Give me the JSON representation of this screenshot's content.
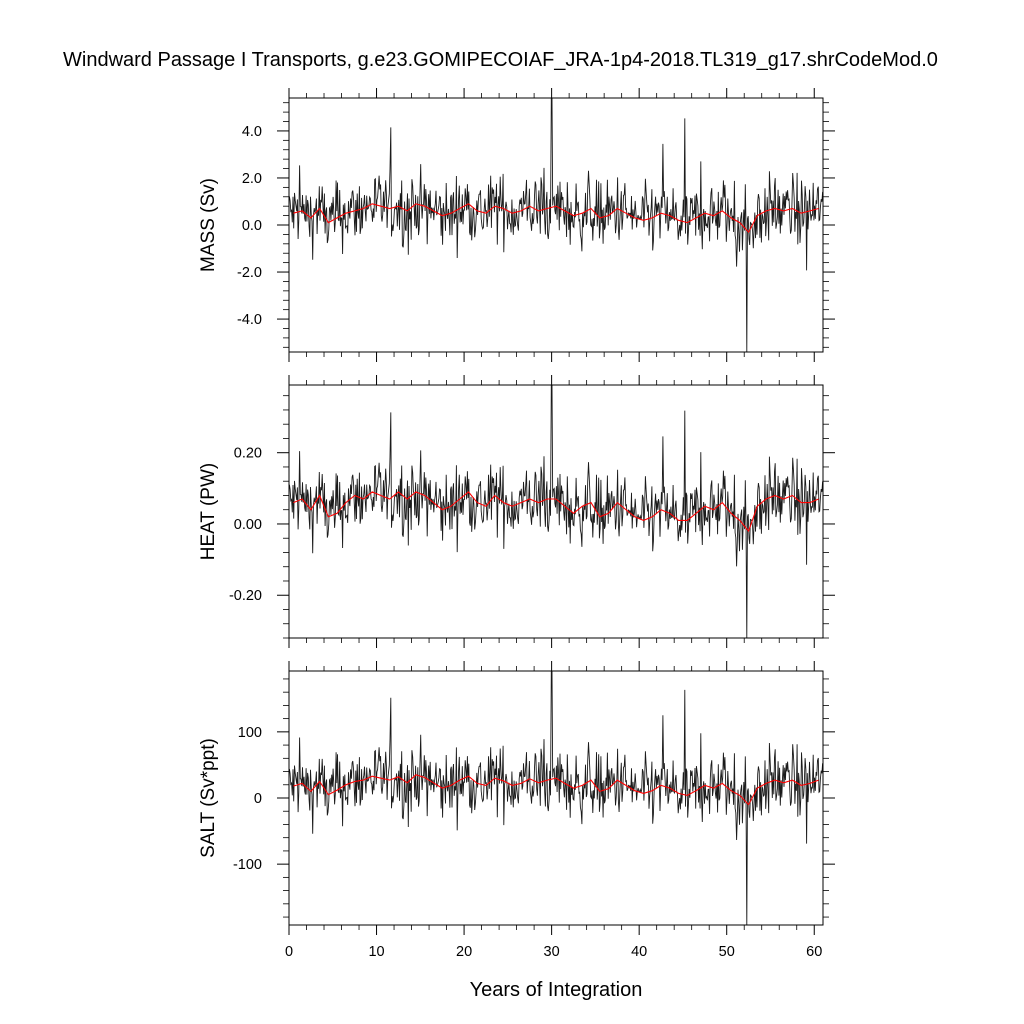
{
  "chart_data": {
    "title": "Windward Passage I Transports, g.e23.GOMIPECOIAF_JRA-1p4-2018.TL319_g17.shrCodeMod.0",
    "xlabel": "Years of Integration",
    "x_range": [
      0,
      61
    ],
    "x_ticks": [
      0,
      10,
      20,
      30,
      40,
      50,
      60
    ],
    "x_tick_labels": [
      "0",
      "10",
      "20",
      "30",
      "40",
      "50",
      "60"
    ],
    "grid": false,
    "colors": {
      "monthly": "#1a1a1a",
      "annual": "#ff0000",
      "frame": "#000000"
    },
    "panels": [
      {
        "type": "line",
        "ylabel": "MASS (Sv)",
        "ylim": [
          -5.4,
          5.4
        ],
        "y_ticks": [
          -4,
          -2,
          0,
          2,
          4
        ],
        "y_tick_labels": [
          "-4.0",
          "-2.0",
          "0.0",
          "2.0",
          "4.0"
        ],
        "minor_step": 0.4,
        "series": [
          {
            "role": "monthly",
            "mean": 0.5,
            "amplitude": 1.0,
            "max": 5.4,
            "min": -5.4,
            "max_at_year": 30.0,
            "min_at_year": 52.3
          },
          {
            "role": "annual",
            "x": [
              0.5,
              1.5,
              2.5,
              3.5,
              4.5,
              5.5,
              6.5,
              7.5,
              8.5,
              9.5,
              10.5,
              11.5,
              12.5,
              13.5,
              14.5,
              15.5,
              16.5,
              17.5,
              18.5,
              19.5,
              20.5,
              21.5,
              22.5,
              23.5,
              24.5,
              25.5,
              26.5,
              27.5,
              28.5,
              29.5,
              30.5,
              31.5,
              32.5,
              33.5,
              34.5,
              35.5,
              36.5,
              37.5,
              38.5,
              39.5,
              40.5,
              41.5,
              42.5,
              43.5,
              44.5,
              45.5,
              46.5,
              47.5,
              48.5,
              49.5,
              50.5,
              51.5,
              52.5,
              53.5,
              54.5,
              55.5,
              56.5,
              57.5,
              58.5,
              59.5,
              60.5
            ],
            "y": [
              0.5,
              0.6,
              0.3,
              0.7,
              0.1,
              0.3,
              0.5,
              0.6,
              0.7,
              0.9,
              0.8,
              0.7,
              0.8,
              0.6,
              0.9,
              0.8,
              0.6,
              0.4,
              0.5,
              0.7,
              0.9,
              0.6,
              0.5,
              0.8,
              0.7,
              0.5,
              0.6,
              0.8,
              0.6,
              0.7,
              0.8,
              0.6,
              0.4,
              0.5,
              0.7,
              0.3,
              0.4,
              0.7,
              0.5,
              0.3,
              0.2,
              0.3,
              0.5,
              0.4,
              0.2,
              0.1,
              0.3,
              0.5,
              0.4,
              0.6,
              0.3,
              0.1,
              -0.3,
              0.4,
              0.6,
              0.7,
              0.6,
              0.7,
              0.5,
              0.6,
              0.7
            ]
          }
        ]
      },
      {
        "type": "line",
        "ylabel": "HEAT (PW)",
        "ylim": [
          -0.32,
          0.39
        ],
        "y_ticks": [
          -0.2,
          0,
          0.2
        ],
        "y_tick_labels": [
          "-0.20",
          "0.00",
          "0.20"
        ],
        "minor_step": 0.04,
        "series": [
          {
            "role": "monthly",
            "mean": 0.06,
            "amplitude": 0.07,
            "max": 0.39,
            "min": -0.32,
            "max_at_year": 30.0,
            "min_at_year": 52.3
          },
          {
            "role": "annual",
            "x": [
              0.5,
              1.5,
              2.5,
              3.5,
              4.5,
              5.5,
              6.5,
              7.5,
              8.5,
              9.5,
              10.5,
              11.5,
              12.5,
              13.5,
              14.5,
              15.5,
              16.5,
              17.5,
              18.5,
              19.5,
              20.5,
              21.5,
              22.5,
              23.5,
              24.5,
              25.5,
              26.5,
              27.5,
              28.5,
              29.5,
              30.5,
              31.5,
              32.5,
              33.5,
              34.5,
              35.5,
              36.5,
              37.5,
              38.5,
              39.5,
              40.5,
              41.5,
              42.5,
              43.5,
              44.5,
              45.5,
              46.5,
              47.5,
              48.5,
              49.5,
              50.5,
              51.5,
              52.5,
              53.5,
              54.5,
              55.5,
              56.5,
              57.5,
              58.5,
              59.5,
              60.5
            ],
            "y": [
              0.06,
              0.07,
              0.04,
              0.08,
              0.02,
              0.03,
              0.06,
              0.08,
              0.07,
              0.09,
              0.08,
              0.07,
              0.09,
              0.07,
              0.09,
              0.08,
              0.06,
              0.04,
              0.05,
              0.07,
              0.09,
              0.06,
              0.05,
              0.08,
              0.06,
              0.05,
              0.06,
              0.07,
              0.06,
              0.07,
              0.07,
              0.05,
              0.03,
              0.05,
              0.06,
              0.02,
              0.03,
              0.06,
              0.04,
              0.02,
              0.01,
              0.02,
              0.04,
              0.03,
              0.01,
              0.01,
              0.03,
              0.05,
              0.04,
              0.06,
              0.03,
              0.01,
              -0.02,
              0.05,
              0.07,
              0.08,
              0.07,
              0.08,
              0.06,
              0.06,
              0.07
            ]
          }
        ]
      },
      {
        "type": "line",
        "ylabel": "SALT (Sv*ppt)",
        "ylim": [
          -192,
          192
        ],
        "y_ticks": [
          -100,
          0,
          100
        ],
        "y_tick_labels": [
          "-100",
          "0",
          "100"
        ],
        "minor_step": 20,
        "series": [
          {
            "role": "monthly",
            "mean": 18,
            "amplitude": 36,
            "max": 192,
            "min": -192,
            "max_at_year": 30.0,
            "min_at_year": 52.3
          },
          {
            "role": "annual",
            "x": [
              0.5,
              1.5,
              2.5,
              3.5,
              4.5,
              5.5,
              6.5,
              7.5,
              8.5,
              9.5,
              10.5,
              11.5,
              12.5,
              13.5,
              14.5,
              15.5,
              16.5,
              17.5,
              18.5,
              19.5,
              20.5,
              21.5,
              22.5,
              23.5,
              24.5,
              25.5,
              26.5,
              27.5,
              28.5,
              29.5,
              30.5,
              31.5,
              32.5,
              33.5,
              34.5,
              35.5,
              36.5,
              37.5,
              38.5,
              39.5,
              40.5,
              41.5,
              42.5,
              43.5,
              44.5,
              45.5,
              46.5,
              47.5,
              48.5,
              49.5,
              50.5,
              51.5,
              52.5,
              53.5,
              54.5,
              55.5,
              56.5,
              57.5,
              58.5,
              59.5,
              60.5
            ],
            "y": [
              18,
              22,
              10,
              25,
              5,
              12,
              20,
              25,
              27,
              33,
              30,
              27,
              32,
              23,
              35,
              31,
              23,
              15,
              19,
              27,
              33,
              22,
              19,
              30,
              26,
              19,
              22,
              29,
              23,
              27,
              30,
              22,
              15,
              19,
              27,
              10,
              14,
              27,
              19,
              11,
              7,
              11,
              19,
              15,
              7,
              4,
              11,
              19,
              15,
              22,
              11,
              4,
              -10,
              15,
              22,
              27,
              23,
              27,
              19,
              22,
              27
            ]
          }
        ]
      }
    ]
  }
}
